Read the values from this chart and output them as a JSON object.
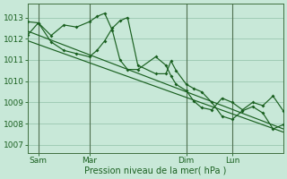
{
  "xlabel": "Pression niveau de la mer( hPa )",
  "bg_color": "#c8e8d8",
  "grid_color": "#90c0a8",
  "line_color": "#1a6020",
  "vline_color": "#507050",
  "ylim": [
    1006.6,
    1013.65
  ],
  "yticks": [
    1007,
    1008,
    1009,
    1010,
    1011,
    1012,
    1013
  ],
  "xlim": [
    0,
    100
  ],
  "day_positions": [
    4,
    24,
    62,
    80
  ],
  "day_labels": [
    "Sam",
    "Mar",
    "Dim",
    "Lun"
  ],
  "trend1_x": [
    0,
    100
  ],
  "trend1_y": [
    1012.35,
    1007.75
  ],
  "trend2_x": [
    0,
    100
  ],
  "trend2_y": [
    1011.9,
    1007.6
  ],
  "zigzag1_x": [
    0,
    4,
    9,
    14,
    19,
    24,
    27,
    30,
    33,
    36,
    39,
    43,
    50,
    54,
    56,
    58,
    62,
    65,
    68,
    72,
    76,
    80,
    84,
    88,
    92,
    96,
    100
  ],
  "zigzag1_y": [
    1012.8,
    1012.75,
    1012.15,
    1012.65,
    1012.55,
    1012.8,
    1013.05,
    1013.2,
    1012.4,
    1011.0,
    1010.55,
    1010.55,
    1011.15,
    1010.75,
    1010.25,
    1009.85,
    1009.55,
    1009.05,
    1008.75,
    1008.65,
    1009.2,
    1009.0,
    1008.65,
    1009.0,
    1008.85,
    1009.3,
    1008.6
  ],
  "zigzag2_x": [
    0,
    4,
    9,
    14,
    19,
    24,
    27,
    30,
    33,
    36,
    39,
    43,
    50,
    54,
    56,
    58,
    62,
    65,
    68,
    72,
    76,
    80,
    84,
    88,
    92,
    96,
    100
  ],
  "zigzag2_y": [
    1012.2,
    1012.75,
    1011.85,
    1011.45,
    1011.3,
    1011.15,
    1011.45,
    1011.9,
    1012.5,
    1012.85,
    1013.0,
    1010.75,
    1010.35,
    1010.35,
    1010.95,
    1010.5,
    1009.85,
    1009.65,
    1009.5,
    1009.0,
    1008.35,
    1008.2,
    1008.6,
    1008.8,
    1008.5,
    1007.75,
    1007.95
  ]
}
